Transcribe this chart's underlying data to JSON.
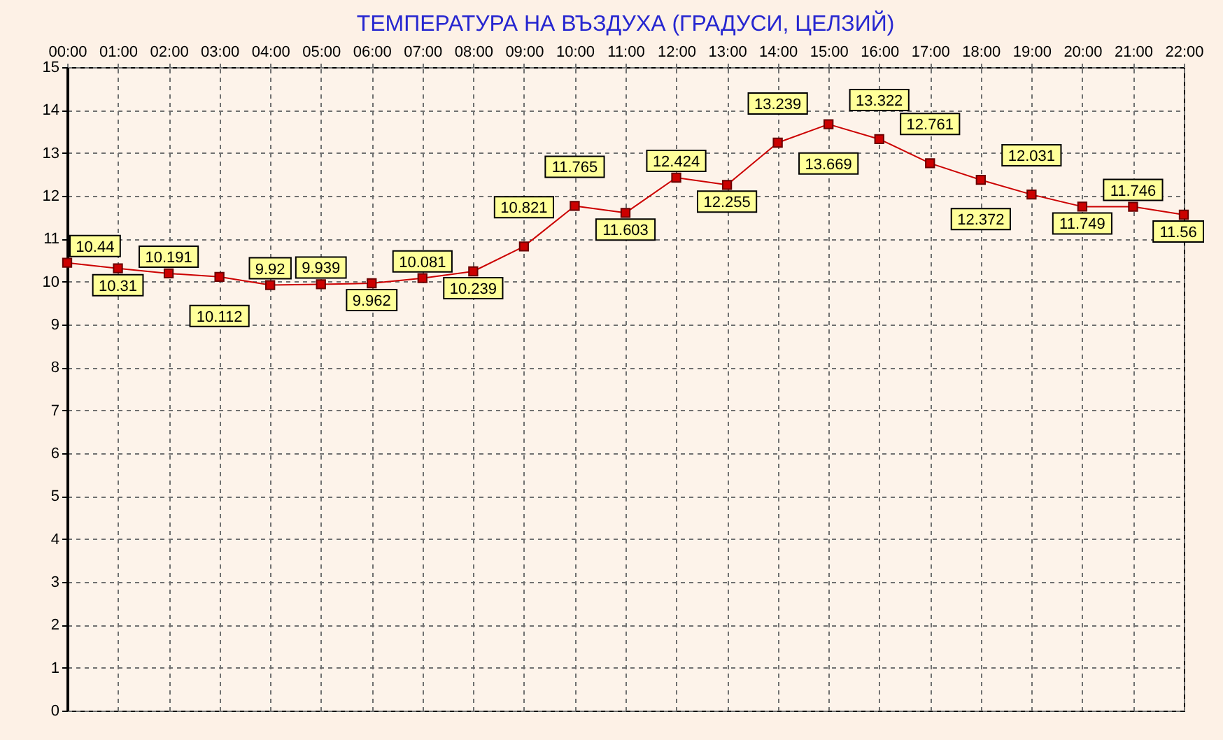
{
  "chart_data": {
    "type": "line",
    "title": "ТЕМПЕРАТУРА НА ВЪЗДУХА  (ГРАДУСИ, ЦЕЛЗИЙ)",
    "x": [
      0,
      1,
      2,
      3,
      4,
      5,
      6,
      7,
      8,
      9,
      10,
      11,
      12,
      13,
      14,
      15,
      16,
      17,
      18,
      19,
      20,
      21,
      22
    ],
    "series": [
      {
        "color": "#cc0000",
        "values": [
          10.44,
          10.31,
          10.191,
          10.112,
          9.92,
          9.939,
          9.962,
          10.081,
          10.239,
          10.821,
          11.765,
          11.603,
          12.424,
          12.255,
          13.239,
          13.669,
          13.322,
          12.761,
          12.372,
          12.031,
          11.749,
          11.746,
          11.56
        ]
      }
    ],
    "xlim": [
      0,
      22
    ],
    "xticks": [
      {
        "value": 0,
        "label": "00:00"
      },
      {
        "value": 1,
        "label": "01:00"
      },
      {
        "value": 2,
        "label": "02:00"
      },
      {
        "value": 3,
        "label": "03:00"
      },
      {
        "value": 4,
        "label": "04:00"
      },
      {
        "value": 5,
        "label": "05:00"
      },
      {
        "value": 6,
        "label": "06:00"
      },
      {
        "value": 7,
        "label": "07:00"
      },
      {
        "value": 8,
        "label": "08:00"
      },
      {
        "value": 9,
        "label": "09:00"
      },
      {
        "value": 10,
        "label": "10:00"
      },
      {
        "value": 11,
        "label": "11:00"
      },
      {
        "value": 12,
        "label": "12:00"
      },
      {
        "value": 13,
        "label": "13:00"
      },
      {
        "value": 14,
        "label": "14:00"
      },
      {
        "value": 15,
        "label": "15:00"
      },
      {
        "value": 16,
        "label": "16:00"
      },
      {
        "value": 17,
        "label": "17:00"
      },
      {
        "value": 18,
        "label": "18:00"
      },
      {
        "value": 19,
        "label": "19:00"
      },
      {
        "value": 20,
        "label": "20:00"
      },
      {
        "value": 21,
        "label": "21:00"
      },
      {
        "value": 22,
        "label": "22:00"
      }
    ],
    "ylim": [
      0,
      15
    ],
    "yticks": [
      0,
      1,
      2,
      3,
      4,
      5,
      6,
      7,
      8,
      9,
      10,
      11,
      12,
      13,
      14,
      15
    ],
    "grid": true,
    "marker": "square",
    "data_labels": true
  }
}
